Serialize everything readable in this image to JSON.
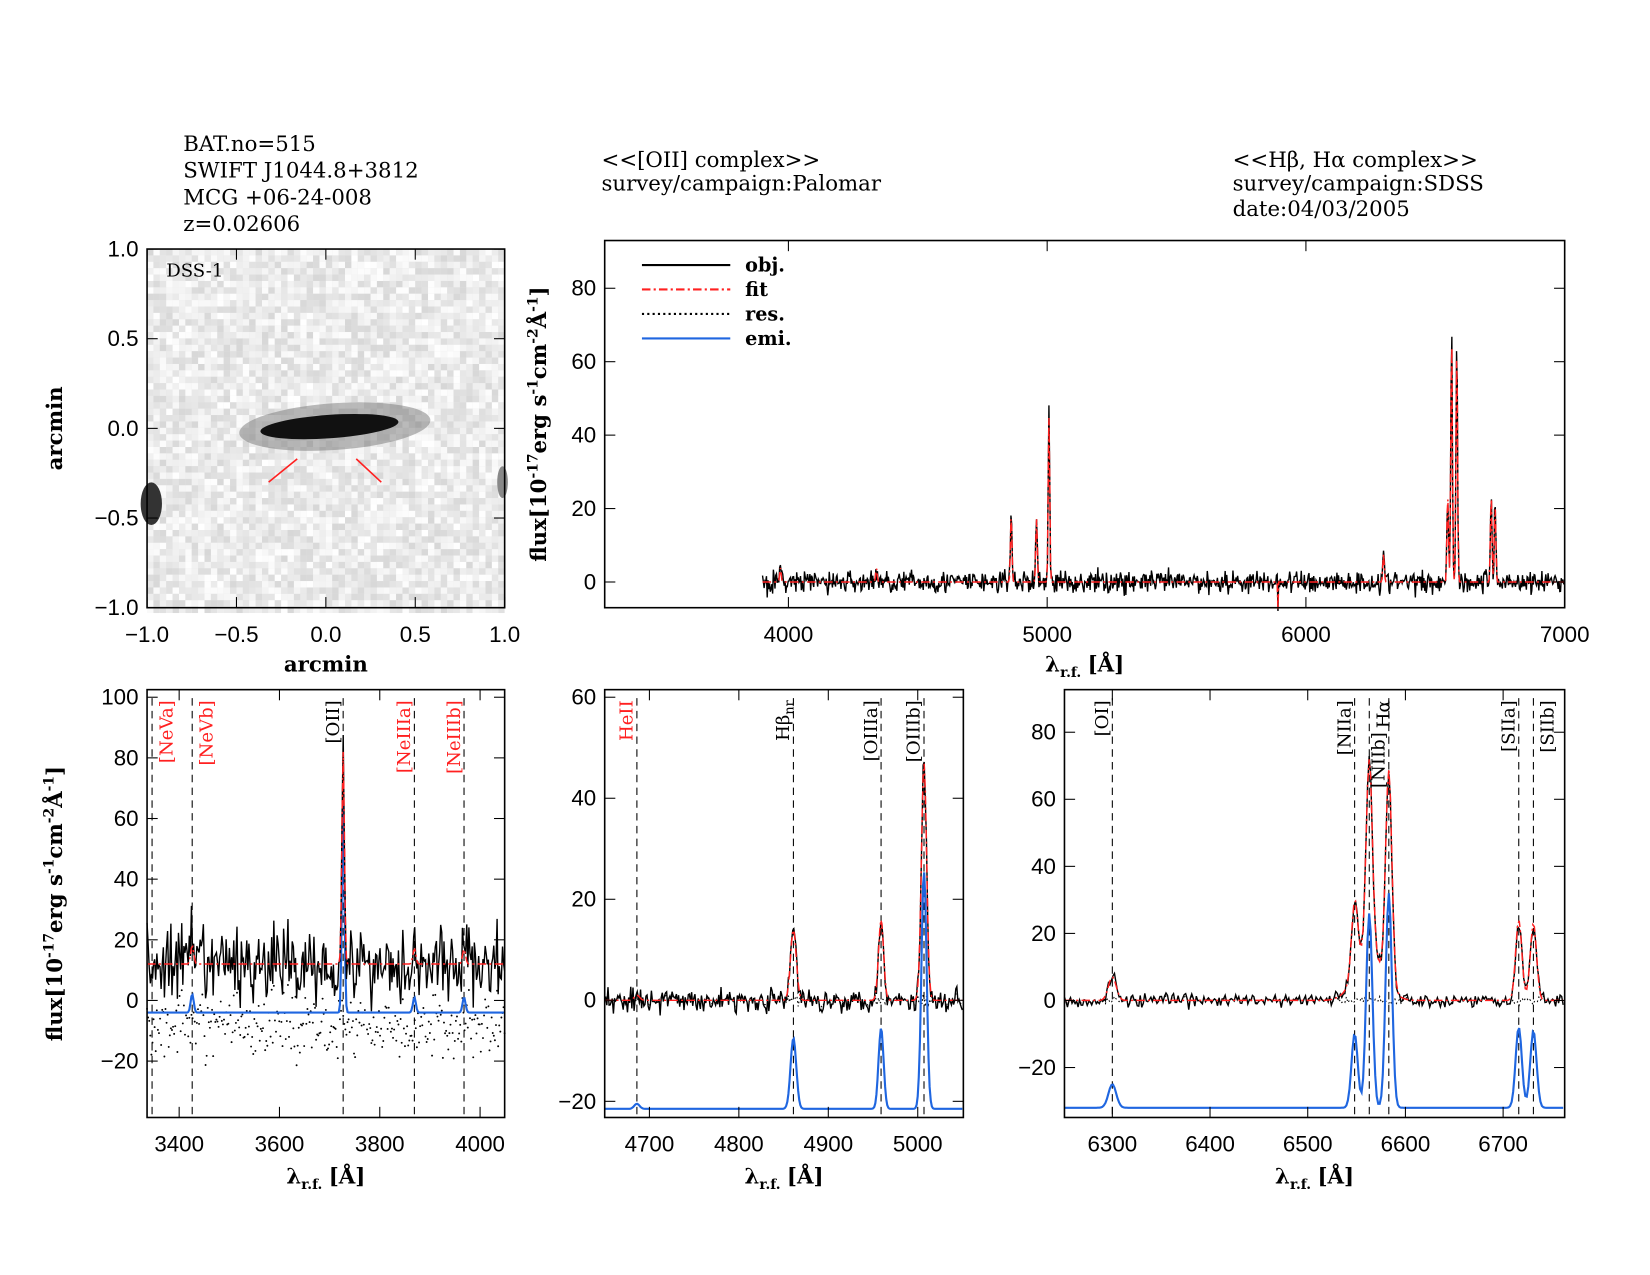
{
  "header": {
    "object": [
      "BAT.no=515",
      "SWIFT J1044.8+3812",
      "MCG +06-24-008",
      "z=0.02606"
    ],
    "oii": [
      "<<[OII] complex>>",
      "survey/campaign:Palomar"
    ],
    "hab": [
      "<<Hβ, Hα complex>>",
      "survey/campaign:SDSS",
      "date:04/03/2005"
    ]
  },
  "colors": {
    "obj": "#000000",
    "fit": "#ff2020",
    "res": "#000000",
    "emi": "#1f66e0",
    "marker_red": "#ff2020"
  },
  "legend": [
    {
      "label": "obj.",
      "style": "solid",
      "color": "#000000"
    },
    {
      "label": "fit",
      "style": "dash-dot",
      "color": "#ff2020"
    },
    {
      "label": "res.",
      "style": "dotted",
      "color": "#000000"
    },
    {
      "label": "emi.",
      "style": "solid",
      "color": "#1f66e0"
    }
  ],
  "flux_label": [
    "flux[10",
    "-17",
    "erg s",
    "-1",
    "cm",
    "-2",
    "Å",
    "-1",
    "]"
  ],
  "lambda_label": [
    "λ",
    "r.f.",
    "[Å]"
  ],
  "chart_data": [
    {
      "id": "image",
      "type": "heatmap",
      "label": "DSS-1",
      "xlabel": "arcmin",
      "ylabel": "arcmin",
      "xlim": [
        -1,
        1
      ],
      "ylim": [
        -1,
        1
      ],
      "xticks": [
        "−1.0",
        "−0.5",
        "0.0",
        "0.5",
        "1.0"
      ],
      "yticks": [
        "−1.0",
        "−0.5",
        "0.0",
        "0.5",
        "1.0"
      ],
      "xtick_vals": [
        -1,
        -0.5,
        0,
        0.5,
        1
      ],
      "ytick_vals": [
        -1,
        -0.5,
        0,
        0.5,
        1
      ]
    },
    {
      "id": "full",
      "type": "line",
      "xlim": [
        3290,
        7000
      ],
      "ylim": [
        -7,
        93
      ],
      "xtick_vals": [
        4000,
        5000,
        6000,
        7000
      ],
      "xticks": [
        "4000",
        "5000",
        "6000",
        "7000"
      ],
      "ytick_vals": [
        0,
        20,
        40,
        60,
        80
      ],
      "yticks": [
        "0",
        "20",
        "40",
        "60",
        "80"
      ],
      "data_range": [
        3900,
        7000
      ],
      "continuum": 0,
      "noise": 2.2,
      "lines": [
        [
          3727,
          8,
          3
        ],
        [
          3969,
          4,
          3
        ],
        [
          4340,
          4,
          3
        ],
        [
          4861,
          19,
          3
        ],
        [
          4959,
          18,
          3
        ],
        [
          5007,
          47,
          3
        ],
        [
          6300,
          8,
          3
        ],
        [
          6548,
          25,
          3
        ],
        [
          6563,
          71,
          3
        ],
        [
          6583,
          67,
          3
        ],
        [
          6716,
          25,
          3
        ],
        [
          6731,
          22,
          3
        ]
      ]
    },
    {
      "id": "oii",
      "type": "line",
      "xlim": [
        3336,
        4049
      ],
      "ylim": [
        -38.6,
        102.5
      ],
      "xtick_vals": [
        3400,
        3600,
        3800,
        4000
      ],
      "xticks": [
        "3400",
        "3600",
        "3800",
        "4000"
      ],
      "ytick_vals": [
        -20,
        0,
        20,
        40,
        60,
        80,
        100
      ],
      "yticks": [
        "−20",
        "0",
        "20",
        "40",
        "60",
        "80",
        "100"
      ],
      "continuum": 12,
      "noise": 9,
      "emi_offset": -4,
      "lines": [
        [
          3426,
          6,
          3
        ],
        [
          3727,
          70,
          2.5
        ],
        [
          3869,
          5,
          3
        ],
        [
          3968,
          5,
          3
        ]
      ],
      "markers": [
        {
          "x": 3346,
          "label": "[NeVa]",
          "red": true
        },
        {
          "x": 3426,
          "label": "[NeVb]",
          "red": true
        },
        {
          "x": 3727,
          "label": "[OII]",
          "red": false
        },
        {
          "x": 3869,
          "label": "[NeIIIa]",
          "red": true
        },
        {
          "x": 3968,
          "label": "[NeIIIb]",
          "red": true
        }
      ]
    },
    {
      "id": "hb",
      "type": "line",
      "xlim": [
        4650,
        5051
      ],
      "ylim": [
        -23.2,
        61.5
      ],
      "xtick_vals": [
        4700,
        4800,
        4900,
        5000
      ],
      "xticks": [
        "4700",
        "4800",
        "4900",
        "5000"
      ],
      "ytick_vals": [
        -20,
        0,
        20,
        40,
        60
      ],
      "yticks": [
        "−20",
        "0",
        "20",
        "40",
        "60"
      ],
      "continuum": 0,
      "noise": 1.6,
      "emi_offset": -21.5,
      "lines": [
        [
          4686,
          1,
          3
        ],
        [
          4861,
          14,
          3.2
        ],
        [
          4959,
          16,
          2.8
        ],
        [
          5007,
          47,
          2.9
        ]
      ],
      "markers": [
        {
          "x": 4686,
          "label": "HeII",
          "red": true
        },
        {
          "x": 4861,
          "label": "Hβ",
          "sub": "nr",
          "red": false
        },
        {
          "x": 4959,
          "label": "[OIIIa]",
          "red": false
        },
        {
          "x": 5007,
          "label": "[OIIIb]",
          "red": false
        }
      ]
    },
    {
      "id": "ha",
      "type": "line",
      "xlim": [
        6251,
        6763
      ],
      "ylim": [
        -34.9,
        92.7
      ],
      "xtick_vals": [
        6300,
        6400,
        6500,
        6600,
        6700
      ],
      "xticks": [
        "6300",
        "6400",
        "6500",
        "6600",
        "6700"
      ],
      "ytick_vals": [
        -20,
        0,
        20,
        40,
        60,
        80
      ],
      "yticks": [
        "−20",
        "0",
        "20",
        "40",
        "60",
        "80"
      ],
      "continuum": 0,
      "noise": 1.5,
      "emi_offset": -32,
      "lines": [
        [
          6300,
          7,
          4
        ],
        [
          6548,
          22,
          3.2
        ],
        [
          6563,
          58,
          3.2
        ],
        [
          6583,
          64,
          3.2
        ],
        [
          6716,
          24,
          3.2
        ],
        [
          6731,
          23,
          3.2
        ]
      ],
      "markers": [
        {
          "x": 6300,
          "label": "[OI]",
          "red": false
        },
        {
          "x": 6548,
          "label": "[NIIa]",
          "red": false
        },
        {
          "x": 6563,
          "label": "Hα",
          "red": false
        },
        {
          "x": 6583,
          "label": "[NIIb]",
          "red": false
        },
        {
          "x": 6716,
          "label": "[SIIa]",
          "red": false
        },
        {
          "x": 6731,
          "label": "[SIIb]",
          "red": false
        }
      ]
    }
  ]
}
